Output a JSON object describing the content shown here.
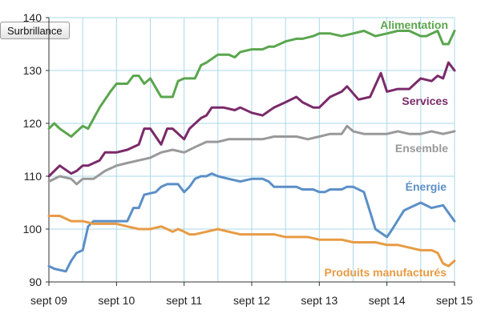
{
  "toolbar": {
    "button_label": "Surbrillance"
  },
  "chart_data": {
    "type": "line",
    "title": "",
    "xlabel": "",
    "ylabel": "",
    "x_ticks": [
      "sept 09",
      "sept 10",
      "sept 11",
      "sept 12",
      "sept 13",
      "sept 14",
      "sept 15"
    ],
    "x_range": [
      2009.67,
      2015.67
    ],
    "ylim": [
      90,
      140
    ],
    "y_ticks": [
      90,
      100,
      110,
      120,
      130,
      140
    ],
    "grid": true,
    "legend": "inline labels",
    "series": [
      {
        "name": "Alimentation",
        "color": "#5aa64e",
        "x": [
          2009.67,
          2009.75,
          2009.83,
          2010.0,
          2010.17,
          2010.25,
          2010.42,
          2010.58,
          2010.67,
          2010.83,
          2010.92,
          2011.0,
          2011.08,
          2011.17,
          2011.33,
          2011.42,
          2011.5,
          2011.58,
          2011.67,
          2011.75,
          2011.83,
          2011.92,
          2012.0,
          2012.17,
          2012.33,
          2012.42,
          2012.5,
          2012.67,
          2012.83,
          2012.92,
          2013.0,
          2013.17,
          2013.33,
          2013.42,
          2013.58,
          2013.67,
          2013.83,
          2014.0,
          2014.17,
          2014.33,
          2014.5,
          2014.67,
          2014.83,
          2015.0,
          2015.17,
          2015.25,
          2015.42,
          2015.5,
          2015.58,
          2015.67
        ],
        "values": [
          119,
          120,
          119,
          117.5,
          119.5,
          119,
          123,
          126,
          127.5,
          127.5,
          129,
          129,
          127.5,
          128.5,
          125,
          125,
          125,
          128,
          128.5,
          128.5,
          128.5,
          131,
          131.5,
          133,
          133,
          132.5,
          133.5,
          134,
          134,
          134.5,
          134.5,
          135.5,
          136,
          136,
          136.5,
          137,
          137,
          136.5,
          137,
          137.5,
          136.5,
          137,
          137.5,
          137.5,
          136.5,
          136.5,
          137.5,
          135,
          135,
          137.5
        ]
      },
      {
        "name": "Services",
        "color": "#7a2a6a",
        "x": [
          2009.67,
          2009.83,
          2010.0,
          2010.08,
          2010.17,
          2010.25,
          2010.42,
          2010.5,
          2010.67,
          2010.83,
          2011.0,
          2011.08,
          2011.17,
          2011.33,
          2011.42,
          2011.5,
          2011.67,
          2011.75,
          2011.92,
          2012.0,
          2012.08,
          2012.25,
          2012.42,
          2012.5,
          2012.67,
          2012.83,
          2013.0,
          2013.17,
          2013.33,
          2013.42,
          2013.58,
          2013.67,
          2013.83,
          2014.0,
          2014.08,
          2014.25,
          2014.42,
          2014.58,
          2014.67,
          2014.83,
          2015.0,
          2015.17,
          2015.33,
          2015.42,
          2015.5,
          2015.58,
          2015.67
        ],
        "values": [
          110,
          112,
          110.5,
          111,
          112,
          112,
          113,
          114.5,
          114.5,
          115,
          116,
          119,
          119,
          116,
          119,
          119,
          117,
          119,
          121,
          121.5,
          123,
          123,
          122.5,
          123,
          122,
          121.5,
          123,
          124,
          125,
          124,
          123,
          123,
          125,
          126,
          127,
          124.5,
          125,
          129.5,
          126,
          126.5,
          126.5,
          128.5,
          128,
          129,
          128.5,
          131.5,
          130
        ]
      },
      {
        "name": "Ensemble",
        "color": "#999999",
        "x": [
          2009.67,
          2009.83,
          2010.0,
          2010.08,
          2010.17,
          2010.33,
          2010.5,
          2010.67,
          2010.83,
          2011.0,
          2011.17,
          2011.33,
          2011.5,
          2011.67,
          2011.83,
          2012.0,
          2012.17,
          2012.33,
          2012.5,
          2012.67,
          2012.83,
          2013.0,
          2013.17,
          2013.33,
          2013.5,
          2013.67,
          2013.83,
          2014.0,
          2014.08,
          2014.17,
          2014.33,
          2014.5,
          2014.67,
          2014.83,
          2015.0,
          2015.17,
          2015.33,
          2015.5,
          2015.67
        ],
        "values": [
          109,
          110,
          109.5,
          108.5,
          109.5,
          109.5,
          111,
          112,
          112.5,
          113,
          113.5,
          114.5,
          115,
          114.5,
          115.5,
          116.5,
          116.5,
          117,
          117,
          117,
          117,
          117.5,
          117.5,
          117.5,
          117,
          117.5,
          118,
          118,
          119.5,
          118.5,
          118,
          118,
          118,
          118.5,
          118,
          118,
          118.5,
          118,
          118.5
        ]
      },
      {
        "name": "Énergie",
        "color": "#5b8fc7",
        "x": [
          2009.67,
          2009.75,
          2009.92,
          2010.0,
          2010.08,
          2010.17,
          2010.25,
          2010.33,
          2010.42,
          2010.58,
          2010.75,
          2010.83,
          2010.92,
          2011.0,
          2011.08,
          2011.25,
          2011.33,
          2011.42,
          2011.58,
          2011.67,
          2011.75,
          2011.83,
          2011.92,
          2012.0,
          2012.08,
          2012.17,
          2012.33,
          2012.5,
          2012.67,
          2012.83,
          2012.92,
          2013.0,
          2013.17,
          2013.33,
          2013.42,
          2013.58,
          2013.67,
          2013.75,
          2013.83,
          2014.0,
          2014.08,
          2014.17,
          2014.33,
          2014.5,
          2014.67,
          2014.75,
          2014.92,
          2015.0,
          2015.17,
          2015.33,
          2015.5,
          2015.67
        ],
        "values": [
          93,
          92.5,
          92,
          94,
          95.5,
          96,
          100.5,
          101.5,
          101.5,
          101.5,
          101.5,
          101.5,
          104,
          104,
          106.5,
          107,
          108,
          108.5,
          108.5,
          107,
          108,
          109.5,
          110,
          110,
          110.5,
          110,
          109.5,
          109,
          109.5,
          109.5,
          109,
          108,
          108,
          108,
          107.5,
          107.5,
          107,
          107,
          107.5,
          107.5,
          108,
          108,
          107,
          100,
          98.5,
          100,
          103.5,
          104,
          105,
          104,
          104.5,
          101.5
        ]
      },
      {
        "name": "Produits manufacturés",
        "color": "#e89b45",
        "x": [
          2009.67,
          2009.83,
          2010.0,
          2010.17,
          2010.33,
          2010.5,
          2010.67,
          2010.83,
          2011.0,
          2011.17,
          2011.33,
          2011.42,
          2011.5,
          2011.58,
          2011.67,
          2011.75,
          2011.83,
          2012.0,
          2012.17,
          2012.33,
          2012.5,
          2012.67,
          2012.83,
          2013.0,
          2013.17,
          2013.33,
          2013.5,
          2013.67,
          2013.83,
          2014.0,
          2014.17,
          2014.33,
          2014.5,
          2014.67,
          2014.83,
          2015.0,
          2015.17,
          2015.33,
          2015.42,
          2015.5,
          2015.58,
          2015.67
        ],
        "values": [
          102.5,
          102.5,
          101.5,
          101.5,
          101,
          101,
          101,
          100.5,
          100,
          100,
          100.5,
          100,
          99.5,
          100,
          99.5,
          99,
          99,
          99.5,
          100,
          99.5,
          99,
          99,
          99,
          99,
          98.5,
          98.5,
          98.5,
          98,
          98,
          98,
          97.5,
          97.5,
          97.5,
          97,
          97,
          96.5,
          96,
          96,
          95.5,
          93.5,
          93,
          94
        ]
      }
    ]
  }
}
